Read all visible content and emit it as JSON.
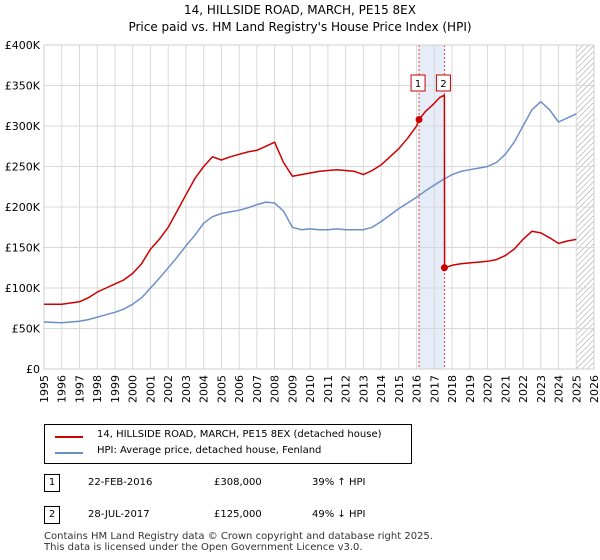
{
  "chart_data": {
    "type": "line",
    "title": "14, HILLSIDE ROAD, MARCH, PE15 8EX",
    "subtitle": "Price paid vs. HM Land Registry's House Price Index (HPI)",
    "xlabel": "",
    "ylabel": "",
    "xlim": [
      1995,
      2026
    ],
    "ylim": [
      0,
      400000
    ],
    "y_ticks": [
      0,
      50000,
      100000,
      150000,
      200000,
      250000,
      300000,
      350000,
      400000
    ],
    "y_tick_labels": [
      "£0",
      "£50K",
      "£100K",
      "£150K",
      "£200K",
      "£250K",
      "£300K",
      "£350K",
      "£400K"
    ],
    "x_ticks": [
      "1995",
      "1996",
      "1997",
      "1998",
      "1999",
      "2000",
      "2001",
      "2002",
      "2003",
      "2004",
      "2005",
      "2006",
      "2007",
      "2008",
      "2009",
      "2010",
      "2011",
      "2012",
      "2013",
      "2014",
      "2015",
      "2016",
      "2017",
      "2018",
      "2019",
      "2020",
      "2021",
      "2022",
      "2023",
      "2024",
      "2025",
      "2026"
    ],
    "grid": true,
    "shaded_span": [
      2016.14,
      2017.57
    ],
    "future_hatch_from": 2025.0,
    "series": [
      {
        "name": "14, HILLSIDE ROAD, MARCH, PE15 8EX (detached house)",
        "color": "#cc0000",
        "x": [
          1995.0,
          1996.0,
          1997.0,
          1997.5,
          1998.0,
          1998.5,
          1999.0,
          1999.5,
          2000.0,
          2000.5,
          2001.0,
          2001.5,
          2002.0,
          2002.5,
          2003.0,
          2003.5,
          2004.0,
          2004.5,
          2005.0,
          2005.5,
          2006.0,
          2006.5,
          2007.0,
          2007.5,
          2008.0,
          2008.5,
          2009.0,
          2009.5,
          2010.0,
          2010.5,
          2011.0,
          2011.5,
          2012.0,
          2012.5,
          2013.0,
          2013.5,
          2014.0,
          2014.5,
          2015.0,
          2015.5,
          2016.0,
          2016.14,
          2016.5,
          2017.0,
          2017.3,
          2017.57,
          2017.58,
          2018.0,
          2018.5,
          2019.0,
          2019.5,
          2020.0,
          2020.5,
          2021.0,
          2021.5,
          2022.0,
          2022.5,
          2023.0,
          2023.5,
          2024.0,
          2024.5,
          2025.0
        ],
        "values": [
          80000,
          80000,
          83000,
          88000,
          95000,
          100000,
          105000,
          110000,
          118000,
          130000,
          148000,
          160000,
          175000,
          195000,
          215000,
          235000,
          250000,
          262000,
          258000,
          262000,
          265000,
          268000,
          270000,
          275000,
          280000,
          255000,
          238000,
          240000,
          242000,
          244000,
          245000,
          246000,
          245000,
          244000,
          240000,
          245000,
          252000,
          262000,
          272000,
          285000,
          300000,
          308000,
          318000,
          328000,
          335000,
          338000,
          125000,
          128000,
          130000,
          131000,
          132000,
          133000,
          135000,
          140000,
          148000,
          160000,
          170000,
          168000,
          162000,
          155000,
          158000,
          160000
        ]
      },
      {
        "name": "HPI: Average price, detached house, Fenland",
        "color": "#6b8fc9",
        "x": [
          1995.0,
          1996.0,
          1997.0,
          1997.5,
          1998.0,
          1998.5,
          1999.0,
          1999.5,
          2000.0,
          2000.5,
          2001.0,
          2001.5,
          2002.0,
          2002.5,
          2003.0,
          2003.5,
          2004.0,
          2004.5,
          2005.0,
          2005.5,
          2006.0,
          2006.5,
          2007.0,
          2007.5,
          2008.0,
          2008.5,
          2009.0,
          2009.5,
          2010.0,
          2010.5,
          2011.0,
          2011.5,
          2012.0,
          2012.5,
          2013.0,
          2013.5,
          2014.0,
          2014.5,
          2015.0,
          2015.5,
          2016.0,
          2016.5,
          2017.0,
          2017.5,
          2018.0,
          2018.5,
          2019.0,
          2019.5,
          2020.0,
          2020.5,
          2021.0,
          2021.5,
          2022.0,
          2022.5,
          2023.0,
          2023.5,
          2024.0,
          2024.5,
          2025.0
        ],
        "values": [
          58000,
          57000,
          59000,
          61000,
          64000,
          67000,
          70000,
          74000,
          80000,
          88000,
          100000,
          112000,
          125000,
          138000,
          152000,
          165000,
          180000,
          188000,
          192000,
          194000,
          196000,
          199000,
          203000,
          206000,
          205000,
          195000,
          175000,
          172000,
          173000,
          172000,
          172000,
          173000,
          172000,
          172000,
          172000,
          175000,
          182000,
          190000,
          198000,
          205000,
          212000,
          220000,
          227000,
          234000,
          240000,
          244000,
          246000,
          248000,
          250000,
          255000,
          265000,
          280000,
          300000,
          320000,
          330000,
          320000,
          305000,
          310000,
          315000
        ]
      }
    ],
    "markers": [
      {
        "label": "1",
        "x": 2016.14,
        "y": 308000
      },
      {
        "label": "2",
        "x": 2017.57,
        "y": 125000
      }
    ]
  },
  "legend": {
    "property_label": "14, HILLSIDE ROAD, MARCH, PE15 8EX (detached house)",
    "hpi_label": "HPI: Average price, detached house, Fenland"
  },
  "sales": [
    {
      "num": "1",
      "date": "22-FEB-2016",
      "price": "£308,000",
      "hpi": "39% ↑ HPI"
    },
    {
      "num": "2",
      "date": "28-JUL-2017",
      "price": "£125,000",
      "hpi": "49% ↓ HPI"
    }
  ],
  "footer": {
    "line1": "Contains HM Land Registry data © Crown copyright and database right 2025.",
    "line2": "This data is licensed under the Open Government Licence v3.0."
  }
}
